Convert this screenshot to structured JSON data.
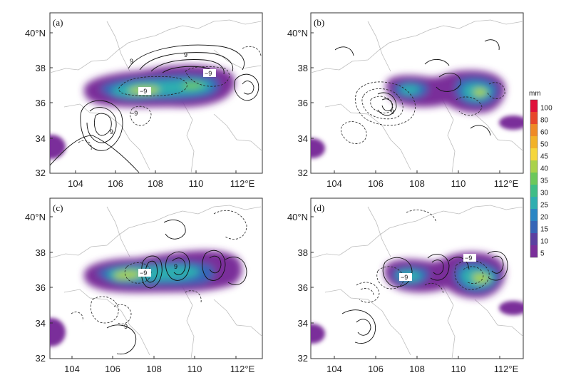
{
  "panels": [
    {
      "label": "(a)",
      "x_ticks": [
        "104",
        "106",
        "108",
        "110",
        "112°E"
      ],
      "y_ticks": [
        "40°N",
        "38",
        "36",
        "34",
        "32"
      ],
      "contour_labels": [
        "9",
        "−9",
        "−9",
        "−9",
        "9",
        "9"
      ]
    },
    {
      "label": "(b)",
      "x_ticks": [
        "104",
        "106",
        "108",
        "110",
        "112°E"
      ],
      "y_ticks": [
        "40°N",
        "38",
        "36",
        "34",
        "32"
      ],
      "contour_labels": [
        "9"
      ]
    },
    {
      "label": "(c)",
      "x_ticks": [
        "104",
        "106",
        "108",
        "110",
        "112°E"
      ],
      "y_ticks": [
        "40°N",
        "38",
        "36",
        "34",
        "32"
      ],
      "contour_labels": [
        "−9",
        "9",
        "9"
      ]
    },
    {
      "label": "(d)",
      "x_ticks": [
        "104",
        "106",
        "108",
        "110",
        "112°E"
      ],
      "y_ticks": [
        "40°N",
        "38",
        "36",
        "34",
        "32"
      ],
      "contour_labels": [
        "−9",
        "−9"
      ]
    }
  ],
  "colorbar": {
    "unit": "mm",
    "ticks": [
      "100",
      "80",
      "60",
      "50",
      "45",
      "40",
      "35",
      "30",
      "25",
      "20",
      "15",
      "10",
      "5"
    ],
    "colors": [
      "#e0123a",
      "#e8472b",
      "#ef8a26",
      "#f2b227",
      "#f5d63a",
      "#a9d24a",
      "#6cc85a",
      "#3fbd86",
      "#2eaeb0",
      "#2a86c4",
      "#3565b7",
      "#5a3fa0",
      "#7a2e9a"
    ]
  }
}
